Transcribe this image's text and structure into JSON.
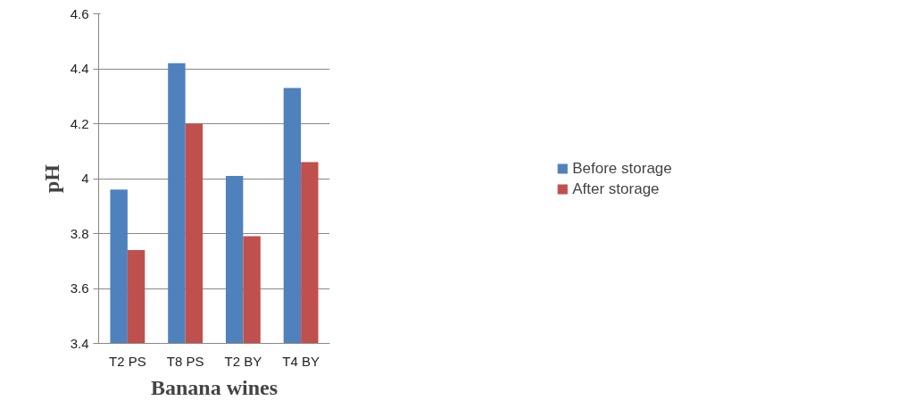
{
  "chart_data": {
    "type": "bar",
    "xlabel": "Banana wines",
    "ylabel": "pH",
    "categories": [
      "T2 PS",
      "T8 PS",
      "T2 BY",
      "T4 BY"
    ],
    "series": [
      {
        "name": "Before storage",
        "color": "#4f81bd",
        "values": [
          3.96,
          4.42,
          4.01,
          4.33
        ]
      },
      {
        "name": "After storage",
        "color": "#c0504d",
        "values": [
          3.74,
          4.2,
          3.79,
          4.06
        ]
      }
    ],
    "ylim": [
      3.4,
      4.6
    ],
    "yticks": [
      3.4,
      3.6,
      3.8,
      4,
      4.2,
      4.4,
      4.6
    ],
    "grid": "y",
    "legend": "right"
  }
}
